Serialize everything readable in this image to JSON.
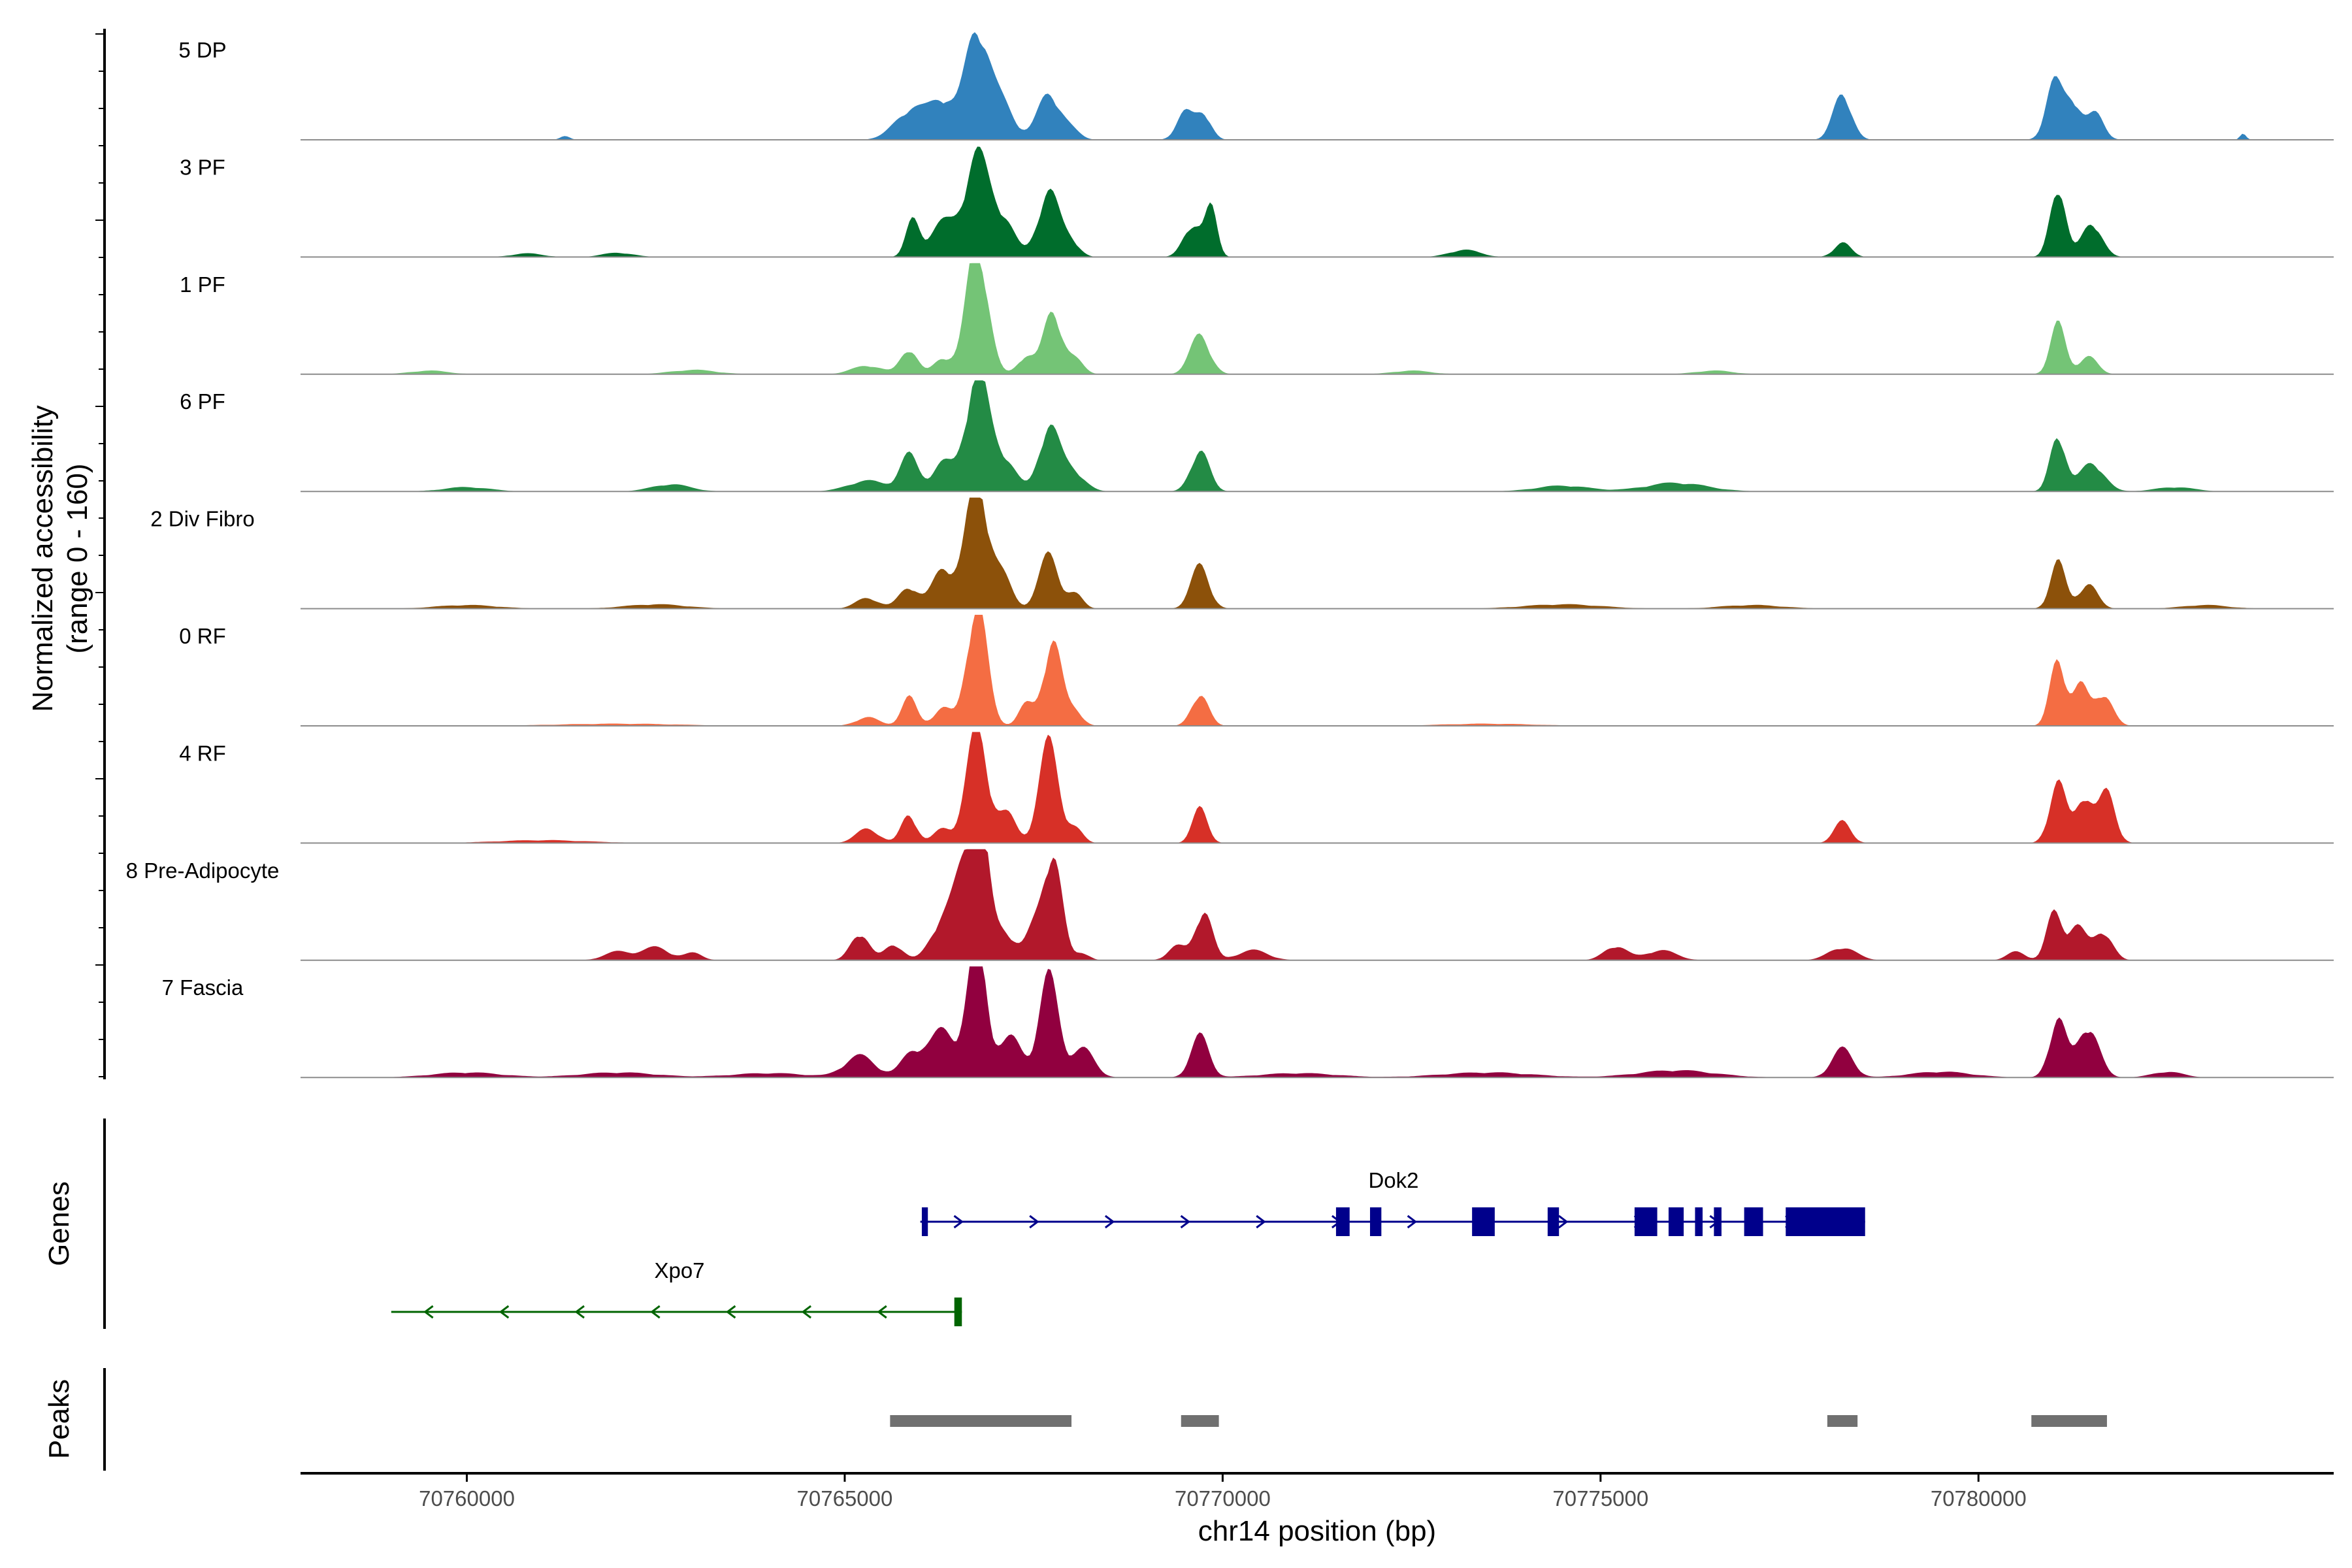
{
  "chart_data": {
    "type": "area",
    "title": "",
    "ylabel_line1": "Normalized accessibility",
    "ylabel_line2": "(range 0 - 160)",
    "xlabel": "chr14 position (bp)",
    "xlim": [
      70757800,
      70784700
    ],
    "ylim": [
      0,
      160
    ],
    "xticks": [
      70760000,
      70765000,
      70770000,
      70775000,
      70780000
    ],
    "xtick_labels": [
      "70760000",
      "70765000",
      "70770000",
      "70775000",
      "70780000"
    ],
    "series": [
      {
        "name": "5 DP",
        "color": "#3182bd",
        "peaks": [
          [
            70761300,
            60,
            6
          ],
          [
            70765900,
            220,
            44
          ],
          [
            70766300,
            150,
            48
          ],
          [
            70766750,
            160,
            155
          ],
          [
            70767100,
            150,
            45
          ],
          [
            70767700,
            150,
            64
          ],
          [
            70768000,
            120,
            12
          ],
          [
            70769500,
            110,
            38
          ],
          [
            70769750,
            100,
            36
          ],
          [
            70778200,
            120,
            65
          ],
          [
            70781000,
            110,
            78
          ],
          [
            70781250,
            110,
            52
          ],
          [
            70781550,
            110,
            36
          ],
          [
            70783500,
            40,
            8
          ]
        ]
      },
      {
        "name": "3 PF",
        "color": "#006d2c",
        "peaks": [
          [
            70760800,
            200,
            5
          ],
          [
            70762000,
            200,
            6
          ],
          [
            70765900,
            90,
            50
          ],
          [
            70766300,
            170,
            48
          ],
          [
            70766750,
            160,
            140
          ],
          [
            70767100,
            150,
            50
          ],
          [
            70767700,
            140,
            92
          ],
          [
            70768000,
            110,
            20
          ],
          [
            70769600,
            120,
            45
          ],
          [
            70769850,
            80,
            65
          ],
          [
            70773200,
            200,
            10
          ],
          [
            70778200,
            110,
            20
          ],
          [
            70781050,
            100,
            100
          ],
          [
            70781500,
            130,
            48
          ]
        ]
      },
      {
        "name": "1 PF",
        "color": "#74c476",
        "peaks": [
          [
            70759500,
            250,
            5
          ],
          [
            70763000,
            300,
            6
          ],
          [
            70765300,
            200,
            12
          ],
          [
            70765850,
            110,
            35
          ],
          [
            70766300,
            120,
            22
          ],
          [
            70766750,
            140,
            185
          ],
          [
            70767400,
            110,
            25
          ],
          [
            70767750,
            120,
            88
          ],
          [
            70768050,
            110,
            20
          ],
          [
            70769700,
            130,
            55
          ],
          [
            70772500,
            250,
            5
          ],
          [
            70776500,
            250,
            5
          ],
          [
            70781050,
            100,
            70
          ],
          [
            70781450,
            120,
            25
          ]
        ]
      },
      {
        "name": "6 PF",
        "color": "#238b45",
        "peaks": [
          [
            70760000,
            300,
            6
          ],
          [
            70762700,
            250,
            10
          ],
          [
            70765300,
            250,
            15
          ],
          [
            70765850,
            120,
            50
          ],
          [
            70766300,
            140,
            40
          ],
          [
            70766750,
            150,
            165
          ],
          [
            70767100,
            160,
            45
          ],
          [
            70767700,
            130,
            88
          ],
          [
            70768000,
            160,
            30
          ],
          [
            70769700,
            120,
            58
          ],
          [
            70774500,
            350,
            8
          ],
          [
            70776000,
            400,
            12
          ],
          [
            70781050,
            100,
            80
          ],
          [
            70781500,
            160,
            40
          ],
          [
            70782600,
            250,
            6
          ]
        ]
      },
      {
        "name": "2 Div Fibro",
        "color": "#8c510a",
        "peaks": [
          [
            70760000,
            400,
            5
          ],
          [
            70762500,
            400,
            6
          ],
          [
            70765300,
            150,
            15
          ],
          [
            70765850,
            130,
            30
          ],
          [
            70766300,
            140,
            55
          ],
          [
            70766750,
            150,
            180
          ],
          [
            70767100,
            120,
            40
          ],
          [
            70767700,
            130,
            75
          ],
          [
            70768050,
            100,
            20
          ],
          [
            70769700,
            120,
            60
          ],
          [
            70774500,
            500,
            6
          ],
          [
            70777000,
            400,
            5
          ],
          [
            70781050,
            100,
            65
          ],
          [
            70781450,
            120,
            35
          ],
          [
            70783000,
            300,
            5
          ]
        ]
      },
      {
        "name": "0 RF",
        "color": "#f46d43",
        "peaks": [
          [
            70762000,
            800,
            3
          ],
          [
            70765300,
            150,
            12
          ],
          [
            70765850,
            100,
            40
          ],
          [
            70766300,
            120,
            25
          ],
          [
            70766750,
            130,
            175
          ],
          [
            70767400,
            100,
            30
          ],
          [
            70767750,
            120,
            120
          ],
          [
            70768050,
            100,
            20
          ],
          [
            70769700,
            110,
            45
          ],
          [
            70773500,
            600,
            3
          ],
          [
            70781050,
            100,
            95
          ],
          [
            70781350,
            100,
            55
          ],
          [
            70781650,
            120,
            45
          ]
        ]
      },
      {
        "name": "4 RF",
        "color": "#d73027",
        "peaks": [
          [
            70761000,
            600,
            4
          ],
          [
            70765300,
            150,
            20
          ],
          [
            70765850,
            100,
            40
          ],
          [
            70766300,
            120,
            20
          ],
          [
            70766750,
            140,
            160
          ],
          [
            70767150,
            120,
            40
          ],
          [
            70767700,
            130,
            140
          ],
          [
            70768050,
            100,
            20
          ],
          [
            70769700,
            100,
            48
          ],
          [
            70778200,
            110,
            30
          ],
          [
            70781050,
            110,
            85
          ],
          [
            70781400,
            110,
            65
          ],
          [
            70781700,
            110,
            70
          ]
        ]
      },
      {
        "name": "8 Pre-Adipocyte",
        "color": "#b2182b",
        "peaks": [
          [
            70762000,
            180,
            12
          ],
          [
            70762500,
            180,
            18
          ],
          [
            70763000,
            120,
            10
          ],
          [
            70765200,
            120,
            38
          ],
          [
            70765650,
            120,
            22
          ],
          [
            70766300,
            160,
            55
          ],
          [
            70766600,
            140,
            120
          ],
          [
            70766800,
            110,
            160
          ],
          [
            70767100,
            150,
            40
          ],
          [
            70767500,
            110,
            40
          ],
          [
            70767750,
            120,
            150
          ],
          [
            70768150,
            90,
            10
          ],
          [
            70769400,
            120,
            20
          ],
          [
            70769750,
            110,
            70
          ],
          [
            70770400,
            200,
            14
          ],
          [
            70775200,
            150,
            20
          ],
          [
            70775800,
            200,
            14
          ],
          [
            70778200,
            180,
            18
          ],
          [
            70780500,
            120,
            12
          ],
          [
            70781000,
            100,
            65
          ],
          [
            70781300,
            120,
            48
          ],
          [
            70781650,
            120,
            40
          ]
        ]
      },
      {
        "name": "7 Fascia",
        "color": "#91003f",
        "peaks": [
          [
            70760000,
            450,
            7
          ],
          [
            70762000,
            500,
            7
          ],
          [
            70764000,
            500,
            6
          ],
          [
            70765200,
            200,
            30
          ],
          [
            70765900,
            150,
            35
          ],
          [
            70766300,
            170,
            65
          ],
          [
            70766750,
            130,
            185
          ],
          [
            70767200,
            150,
            55
          ],
          [
            70767700,
            130,
            140
          ],
          [
            70768150,
            150,
            40
          ],
          [
            70769700,
            120,
            58
          ],
          [
            70771000,
            500,
            6
          ],
          [
            70773500,
            600,
            7
          ],
          [
            70776000,
            500,
            10
          ],
          [
            70778200,
            140,
            40
          ],
          [
            70779500,
            400,
            8
          ],
          [
            70781050,
            110,
            82
          ],
          [
            70781450,
            140,
            72
          ],
          [
            70782500,
            200,
            8
          ]
        ]
      }
    ]
  },
  "genes_label": "Genes",
  "peaks_label": "Peaks",
  "genes": [
    {
      "name": "Dok2",
      "strand": "+",
      "color": "#00008b",
      "start": 70766000,
      "end": 70778500,
      "exons": [
        [
          70766020,
          70766100
        ],
        [
          70771500,
          70771680
        ],
        [
          70771950,
          70772100
        ],
        [
          70773300,
          70773600
        ],
        [
          70774300,
          70774450
        ],
        [
          70775450,
          70775750
        ],
        [
          70775900,
          70776100
        ],
        [
          70776250,
          70776350
        ],
        [
          70776500,
          70776600
        ],
        [
          70776900,
          70777150
        ],
        [
          70777450,
          70778500
        ]
      ]
    },
    {
      "name": "Xpo7",
      "strand": "-",
      "color": "#006400",
      "start": 70759000,
      "end": 70766550,
      "exons": [
        [
          70766450,
          70766550
        ]
      ]
    }
  ],
  "peak_regions": [
    [
      70765600,
      70768000
    ],
    [
      70769450,
      70769950
    ],
    [
      70778000,
      70778400
    ],
    [
      70780700,
      70781700
    ]
  ],
  "peak_color": "#707070"
}
